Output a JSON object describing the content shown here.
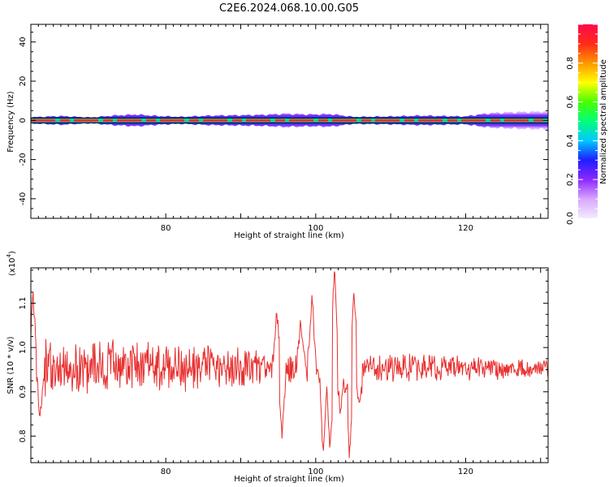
{
  "figure_title": "C2E6.2024.068.10.00.G05",
  "chart_data": [
    {
      "type": "heatmap",
      "xlabel": "Height of straight line (km)",
      "ylabel": "Frequency (Hz)",
      "xlim": [
        62,
        131
      ],
      "ylim": [
        -50,
        49
      ],
      "xticks": [
        80,
        100,
        120
      ],
      "yticks": [
        40,
        20,
        0,
        -20,
        -40
      ],
      "yticklabels": [
        "40",
        "20",
        "0",
        "-20",
        "-40"
      ],
      "colorbar": {
        "label": "Normalized spectral amplitude",
        "range": [
          0.0,
          1.0
        ],
        "ticks": [
          0.0,
          0.2,
          0.4,
          0.6,
          0.8
        ],
        "ticklabels": [
          "0.0",
          "0.2",
          "0.4",
          "0.6",
          "0.8"
        ],
        "colormap": [
          "#f2ecff",
          "#d9a6ff",
          "#8c28ff",
          "#1e1eff",
          "#00c8ff",
          "#00ff7a",
          "#48ff00",
          "#ffff00",
          "#ff9600",
          "#ff2a1a",
          "#ff0a4a"
        ]
      },
      "band_center_hz": 0,
      "band_halfwidth_hz": [
        {
          "x": 62,
          "w": 1.6
        },
        {
          "x": 66,
          "w": 2.2
        },
        {
          "x": 70,
          "w": 1.5
        },
        {
          "x": 73,
          "w": 2.4
        },
        {
          "x": 76,
          "w": 3.0
        },
        {
          "x": 79,
          "w": 2.2
        },
        {
          "x": 82,
          "w": 1.8
        },
        {
          "x": 86,
          "w": 2.4
        },
        {
          "x": 90,
          "w": 2.6
        },
        {
          "x": 93,
          "w": 2.8
        },
        {
          "x": 96,
          "w": 3.4
        },
        {
          "x": 99,
          "w": 3.0
        },
        {
          "x": 102,
          "w": 3.2
        },
        {
          "x": 105,
          "w": 1.8
        },
        {
          "x": 110,
          "w": 2.0
        },
        {
          "x": 114,
          "w": 2.4
        },
        {
          "x": 117,
          "w": 2.2
        },
        {
          "x": 120,
          "w": 2.0
        },
        {
          "x": 123,
          "w": 3.6
        },
        {
          "x": 127,
          "w": 4.2
        },
        {
          "x": 131,
          "w": 4.6
        }
      ]
    },
    {
      "type": "line",
      "xlabel": "Height of straight line (km)",
      "ylabel": "SNR (10 * v/v)",
      "multiplier_label": "(x10",
      "multiplier_exponent": "4",
      "multiplier_close": ")",
      "xlim": [
        62,
        131
      ],
      "ylim": [
        0.74,
        1.18
      ],
      "xticks": [
        80,
        100,
        120
      ],
      "yticks": [
        0.8,
        0.9,
        1.0,
        1.1
      ],
      "yticklabels": [
        "0.8",
        "0.9",
        "1.0",
        "1.1"
      ],
      "series": [
        {
          "color": "#e83030",
          "baseline": 0.955,
          "noise_amplitude": [
            {
              "x": 62,
              "a": 0.07
            },
            {
              "x": 76,
              "a": 0.07
            },
            {
              "x": 90,
              "a": 0.05
            },
            {
              "x": 94,
              "a": 0.04
            },
            {
              "x": 106,
              "a": 0.04
            },
            {
              "x": 114,
              "a": 0.035
            },
            {
              "x": 131,
              "a": 0.025
            }
          ],
          "features": [
            {
              "x": 62.3,
              "y": 1.12
            },
            {
              "x": 63.2,
              "y": 0.85
            },
            {
              "x": 94.8,
              "y": 1.08
            },
            {
              "x": 95.5,
              "y": 0.8
            },
            {
              "x": 98.0,
              "y": 1.06
            },
            {
              "x": 99.5,
              "y": 1.12
            },
            {
              "x": 101.0,
              "y": 0.75
            },
            {
              "x": 101.9,
              "y": 0.77
            },
            {
              "x": 102.5,
              "y": 1.18
            },
            {
              "x": 103.3,
              "y": 0.85
            },
            {
              "x": 104.0,
              "y": 0.9
            },
            {
              "x": 104.5,
              "y": 0.75
            },
            {
              "x": 105.1,
              "y": 1.12
            },
            {
              "x": 105.8,
              "y": 0.87
            }
          ]
        }
      ]
    }
  ]
}
